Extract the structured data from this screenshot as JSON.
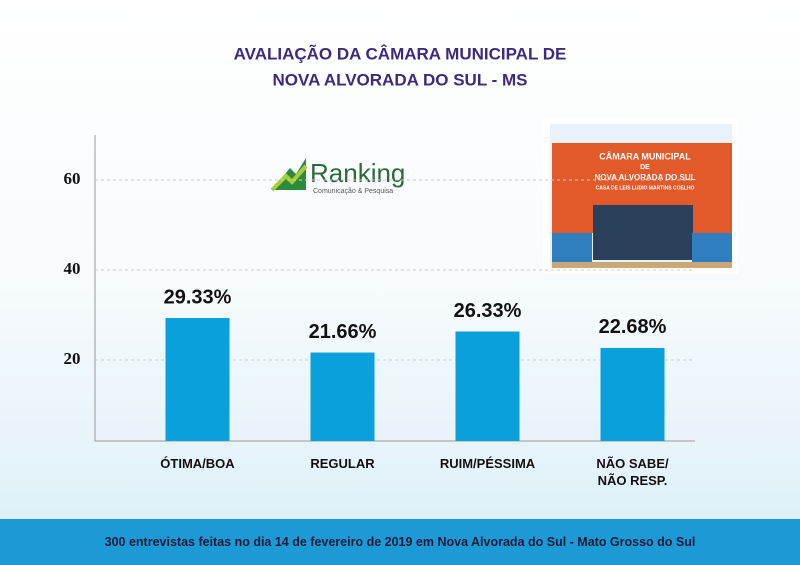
{
  "chart_data": {
    "type": "bar",
    "title": "AVALIAÇÃO DA CÂMARA MUNICIPAL DE",
    "subtitle": "NOVA ALVORADA DO SUL - MS",
    "categories": [
      "ÓTIMA/BOA",
      "REGULAR",
      "RUIM/PÉSSIMA",
      "NÃO SABE/\nNÃO RESP."
    ],
    "values": [
      29.33,
      21.66,
      26.33,
      22.68
    ],
    "value_labels": [
      "29.33%",
      "21.66%",
      "26.33%",
      "22.68%"
    ],
    "color": "#0aa0dc",
    "ylim": [
      2,
      70
    ],
    "yticks": [
      20,
      40,
      60
    ],
    "grid": true,
    "footer": "300 entrevistas feitas no dia 14 de fevereiro de 2019 em Nova Alvorada do Sul - Mato Grosso do Sul"
  },
  "logo": {
    "name": "Ranking",
    "tagline": "Comunicação & Pesquisa"
  },
  "photo_sign": [
    "CÂMARA MUNICIPAL",
    "DE",
    "NOVA ALVORADA DO SUL",
    "CASA DE LEIS LUDIO MARTINS COELHO"
  ]
}
